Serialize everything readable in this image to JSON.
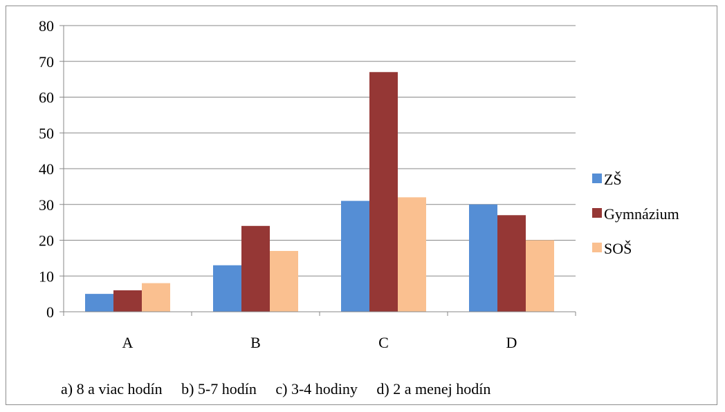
{
  "chart_data": {
    "type": "bar",
    "title": "",
    "xlabel": "",
    "ylabel": "",
    "categories": [
      "A",
      "B",
      "C",
      "D"
    ],
    "series": [
      {
        "name": "ZŠ",
        "values": [
          5,
          13,
          31,
          30
        ],
        "color": "#558ed5"
      },
      {
        "name": "Gymnázium",
        "values": [
          6,
          24,
          67,
          27
        ],
        "color": "#953735"
      },
      {
        "name": "SOŠ",
        "values": [
          8,
          17,
          32,
          20
        ],
        "color": "#fac090"
      }
    ],
    "ylim": [
      0,
      80
    ],
    "yticks": [
      0,
      10,
      20,
      30,
      40,
      50,
      60,
      70,
      80
    ],
    "grid": true,
    "legend": "right"
  },
  "footnotes": [
    "a) 8 a viac hodín",
    "b) 5-7 hodín",
    "c) 3-4 hodiny",
    "d) 2 a menej hodín"
  ]
}
